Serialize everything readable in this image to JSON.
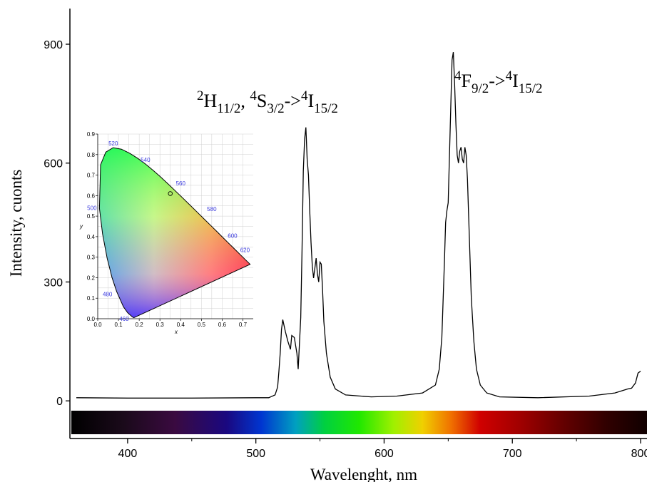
{
  "chart_data": {
    "type": "line",
    "xlabel": "Wavelenght, nm",
    "ylabel": "Intensity, cuonts",
    "xlim": [
      355,
      805
    ],
    "ylim": [
      -95,
      990
    ],
    "x_ticks": [
      400,
      500,
      600,
      700,
      800
    ],
    "y_ticks": [
      0,
      300,
      600,
      900
    ],
    "x_tick_labels": [
      "400",
      "500",
      "600",
      "700",
      "800"
    ],
    "y_tick_labels": [
      "0",
      "300",
      "600",
      "900"
    ],
    "grid": false,
    "series": [
      {
        "color": "#000000",
        "x": [
          360,
          400,
          450,
          500,
          510,
          515,
          517,
          518,
          519,
          520,
          521,
          523,
          525,
          527,
          528,
          530,
          532,
          533,
          535,
          536,
          537,
          538,
          539,
          540,
          541,
          542,
          543,
          544,
          545,
          546,
          547,
          548,
          549,
          550,
          551,
          552,
          553,
          555,
          558,
          562,
          570,
          590,
          610,
          630,
          640,
          643,
          645,
          647,
          648,
          649,
          650,
          651,
          652,
          653,
          654,
          655,
          656,
          657,
          658,
          659,
          660,
          661,
          662,
          663,
          664,
          665,
          666,
          667,
          668,
          670,
          672,
          675,
          680,
          690,
          720,
          760,
          780,
          790,
          793,
          796,
          798,
          800
        ],
        "y": [
          8,
          7,
          7,
          8,
          8,
          15,
          35,
          75,
          120,
          180,
          205,
          175,
          150,
          130,
          165,
          160,
          120,
          80,
          210,
          380,
          580,
          660,
          690,
          610,
          570,
          480,
          400,
          340,
          310,
          335,
          360,
          320,
          300,
          350,
          345,
          280,
          200,
          120,
          60,
          30,
          15,
          10,
          12,
          20,
          40,
          80,
          160,
          350,
          450,
          480,
          500,
          620,
          740,
          860,
          880,
          800,
          700,
          620,
          600,
          630,
          640,
          610,
          600,
          640,
          620,
          560,
          460,
          360,
          260,
          150,
          80,
          40,
          20,
          10,
          8,
          12,
          20,
          30,
          32,
          45,
          70,
          75
        ]
      }
    ],
    "annotations": [
      {
        "parts": [
          {
            "t": "2",
            "s": "sup"
          },
          {
            "t": "H",
            "s": "n"
          },
          {
            "t": "11/2",
            "s": "sub"
          },
          {
            "t": ", ",
            "s": "n"
          },
          {
            "t": "4",
            "s": "sup"
          },
          {
            "t": "S",
            "s": "n"
          },
          {
            "t": "3/2",
            "s": "sub"
          },
          {
            "t": "->",
            "s": "n"
          },
          {
            "t": "4",
            "s": "sup"
          },
          {
            "t": "I",
            "s": "n"
          },
          {
            "t": "15/2",
            "s": "sub"
          }
        ]
      },
      {
        "parts": [
          {
            "t": "4",
            "s": "sup"
          },
          {
            "t": "F",
            "s": "n"
          },
          {
            "t": "9/2",
            "s": "sub"
          },
          {
            "t": "->",
            "s": "n"
          },
          {
            "t": "4",
            "s": "sup"
          },
          {
            "t": "I",
            "s": "n"
          },
          {
            "t": "15/2",
            "s": "sub"
          }
        ]
      }
    ],
    "inset": {
      "type": "chromaticity_diagram",
      "xlabel": "x",
      "ylabel": "y",
      "xlim": [
        0.0,
        0.75
      ],
      "ylim": [
        0.0,
        0.9
      ],
      "x_tick_labels": [
        "0.0",
        "0.1",
        "0.2",
        "0.3",
        "0.4",
        "0.5",
        "0.6",
        "0.7"
      ],
      "y_tick_labels": [
        "0.0",
        "0.1",
        "0.2",
        "0.3",
        "0.4",
        "0.5",
        "0.6",
        "0.7",
        "0.8",
        "0.9"
      ],
      "wavelength_labels": [
        "520",
        "540",
        "560",
        "580",
        "600",
        "620",
        "500",
        "480",
        "460"
      ],
      "point": {
        "x": 0.35,
        "y": 0.61
      }
    }
  }
}
